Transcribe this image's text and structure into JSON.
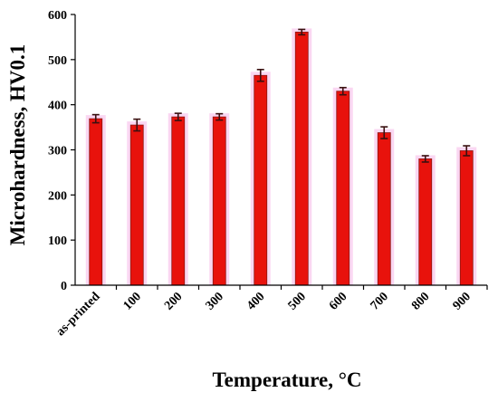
{
  "chart_data": {
    "type": "bar",
    "title": "",
    "xlabel": "Temperature, °C",
    "ylabel": "Microhardness, HV0.1",
    "categories": [
      "as-printed",
      "100",
      "200",
      "300",
      "400",
      "500",
      "600",
      "700",
      "800",
      "900"
    ],
    "values": [
      369,
      355,
      373,
      373,
      465,
      561,
      430,
      338,
      280,
      298
    ],
    "errors": [
      9,
      13,
      8,
      7,
      13,
      6,
      8,
      13,
      7,
      11
    ],
    "ylim": [
      0,
      600
    ],
    "yticks": [
      "0",
      "100",
      "200",
      "300",
      "400",
      "500",
      "600"
    ],
    "grid": false,
    "legend": "none",
    "colors": {
      "bar": "#e8120c",
      "bar_edge": "#8a1512",
      "glow": "#f6b6e8",
      "error_bar": "#3a1010",
      "axis": "#000000"
    }
  }
}
